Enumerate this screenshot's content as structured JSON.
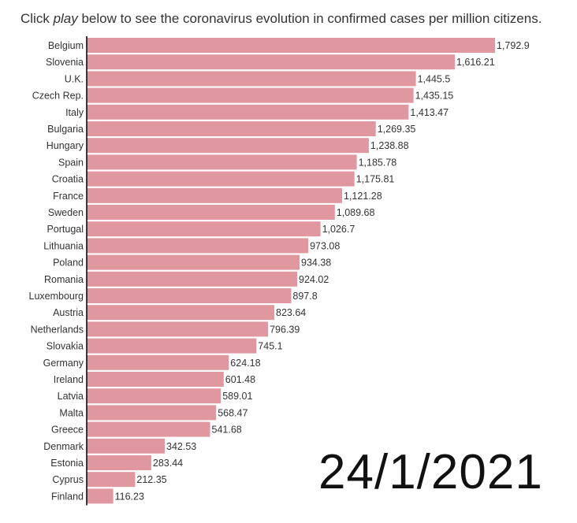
{
  "intro": {
    "prefix": "Click ",
    "play_word": "play",
    "suffix": " below to see the coronavirus evolution in confirmed cases per million citizens."
  },
  "date_stamp": "24/1/2021",
  "colors": {
    "bar": "#e0979f",
    "axis": "#000000"
  },
  "chart_data": {
    "type": "bar",
    "orientation": "horizontal",
    "categories": [
      "Belgium",
      "Slovenia",
      "U.K.",
      "Czech Rep.",
      "Italy",
      "Bulgaria",
      "Hungary",
      "Spain",
      "Croatia",
      "France",
      "Sweden",
      "Portugal",
      "Lithuania",
      "Poland",
      "Romania",
      "Luxembourg",
      "Austria",
      "Netherlands",
      "Slovakia",
      "Germany",
      "Ireland",
      "Latvia",
      "Malta",
      "Greece",
      "Denmark",
      "Estonia",
      "Cyprus",
      "Finland"
    ],
    "values": [
      1792.9,
      1616.21,
      1445.5,
      1435.15,
      1413.47,
      1269.35,
      1238.88,
      1185.78,
      1175.81,
      1121.28,
      1089.68,
      1026.7,
      973.08,
      934.38,
      924.02,
      897.8,
      823.64,
      796.39,
      745.1,
      624.18,
      601.48,
      589.01,
      568.47,
      541.68,
      342.53,
      283.44,
      212.35,
      116.23
    ],
    "value_labels": [
      "1,792.9",
      "1,616.21",
      "1,445.5",
      "1,435.15",
      "1,413.47",
      "1,269.35",
      "1,238.88",
      "1,185.78",
      "1,175.81",
      "1,121.28",
      "1,089.68",
      "1,026.7",
      "973.08",
      "934.38",
      "924.02",
      "897.8",
      "823.64",
      "796.39",
      "745.1",
      "624.18",
      "601.48",
      "589.01",
      "568.47",
      "541.68",
      "342.53",
      "283.44",
      "212.35",
      "116.23"
    ],
    "xlim": [
      0,
      1792.9
    ],
    "grid": false
  }
}
